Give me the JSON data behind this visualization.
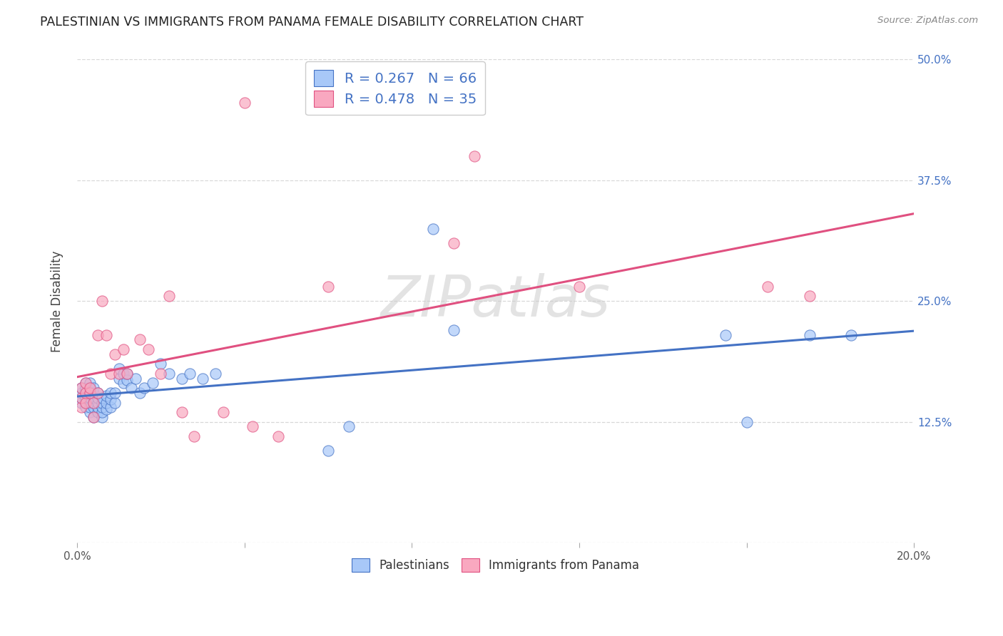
{
  "title": "PALESTINIAN VS IMMIGRANTS FROM PANAMA FEMALE DISABILITY CORRELATION CHART",
  "source": "Source: ZipAtlas.com",
  "ylabel": "Female Disability",
  "x_min": 0.0,
  "x_max": 0.2,
  "y_min": 0.0,
  "y_max": 0.5,
  "x_ticks": [
    0.0,
    0.04,
    0.08,
    0.12,
    0.16,
    0.2
  ],
  "x_tick_labels": [
    "0.0%",
    "",
    "",
    "",
    "",
    "20.0%"
  ],
  "y_ticks": [
    0.0,
    0.125,
    0.25,
    0.375,
    0.5
  ],
  "y_tick_labels": [
    "",
    "12.5%",
    "25.0%",
    "37.5%",
    "50.0%"
  ],
  "legend_r1": "R = 0.267",
  "legend_n1": "N = 66",
  "legend_r2": "R = 0.478",
  "legend_n2": "N = 35",
  "color_palestinian": "#a8c8f8",
  "color_panama": "#f9a8c0",
  "color_line_palestinian": "#4472c4",
  "color_line_panama": "#e05080",
  "color_text_blue": "#4472c4",
  "watermark": "ZIPatlas",
  "palestinians_x": [
    0.001,
    0.001,
    0.001,
    0.001,
    0.002,
    0.002,
    0.002,
    0.002,
    0.002,
    0.002,
    0.003,
    0.003,
    0.003,
    0.003,
    0.003,
    0.003,
    0.003,
    0.004,
    0.004,
    0.004,
    0.004,
    0.004,
    0.004,
    0.005,
    0.005,
    0.005,
    0.005,
    0.005,
    0.006,
    0.006,
    0.006,
    0.006,
    0.006,
    0.007,
    0.007,
    0.007,
    0.008,
    0.008,
    0.008,
    0.009,
    0.009,
    0.01,
    0.01,
    0.011,
    0.011,
    0.012,
    0.012,
    0.013,
    0.014,
    0.015,
    0.016,
    0.018,
    0.02,
    0.022,
    0.025,
    0.027,
    0.03,
    0.033,
    0.06,
    0.065,
    0.085,
    0.09,
    0.155,
    0.16,
    0.175,
    0.185
  ],
  "palestinians_y": [
    0.145,
    0.15,
    0.155,
    0.16,
    0.14,
    0.145,
    0.15,
    0.155,
    0.16,
    0.165,
    0.135,
    0.14,
    0.145,
    0.15,
    0.155,
    0.16,
    0.165,
    0.13,
    0.14,
    0.145,
    0.15,
    0.155,
    0.16,
    0.135,
    0.14,
    0.145,
    0.15,
    0.155,
    0.13,
    0.135,
    0.14,
    0.145,
    0.15,
    0.138,
    0.145,
    0.152,
    0.14,
    0.148,
    0.155,
    0.145,
    0.155,
    0.17,
    0.18,
    0.165,
    0.175,
    0.168,
    0.175,
    0.16,
    0.17,
    0.155,
    0.16,
    0.165,
    0.185,
    0.175,
    0.17,
    0.175,
    0.17,
    0.175,
    0.095,
    0.12,
    0.325,
    0.22,
    0.215,
    0.125,
    0.215,
    0.215
  ],
  "panama_x": [
    0.001,
    0.001,
    0.001,
    0.002,
    0.002,
    0.002,
    0.003,
    0.003,
    0.004,
    0.004,
    0.005,
    0.005,
    0.006,
    0.007,
    0.008,
    0.009,
    0.01,
    0.011,
    0.012,
    0.015,
    0.017,
    0.02,
    0.022,
    0.025,
    0.028,
    0.035,
    0.04,
    0.042,
    0.048,
    0.06,
    0.09,
    0.095,
    0.12,
    0.165,
    0.175
  ],
  "panama_y": [
    0.14,
    0.15,
    0.16,
    0.145,
    0.155,
    0.165,
    0.155,
    0.16,
    0.13,
    0.145,
    0.155,
    0.215,
    0.25,
    0.215,
    0.175,
    0.195,
    0.175,
    0.2,
    0.175,
    0.21,
    0.2,
    0.175,
    0.255,
    0.135,
    0.11,
    0.135,
    0.455,
    0.12,
    0.11,
    0.265,
    0.31,
    0.4,
    0.265,
    0.265,
    0.255
  ],
  "background_color": "#ffffff",
  "grid_color": "#d8d8d8",
  "figsize": [
    14.06,
    8.92
  ],
  "dpi": 100
}
